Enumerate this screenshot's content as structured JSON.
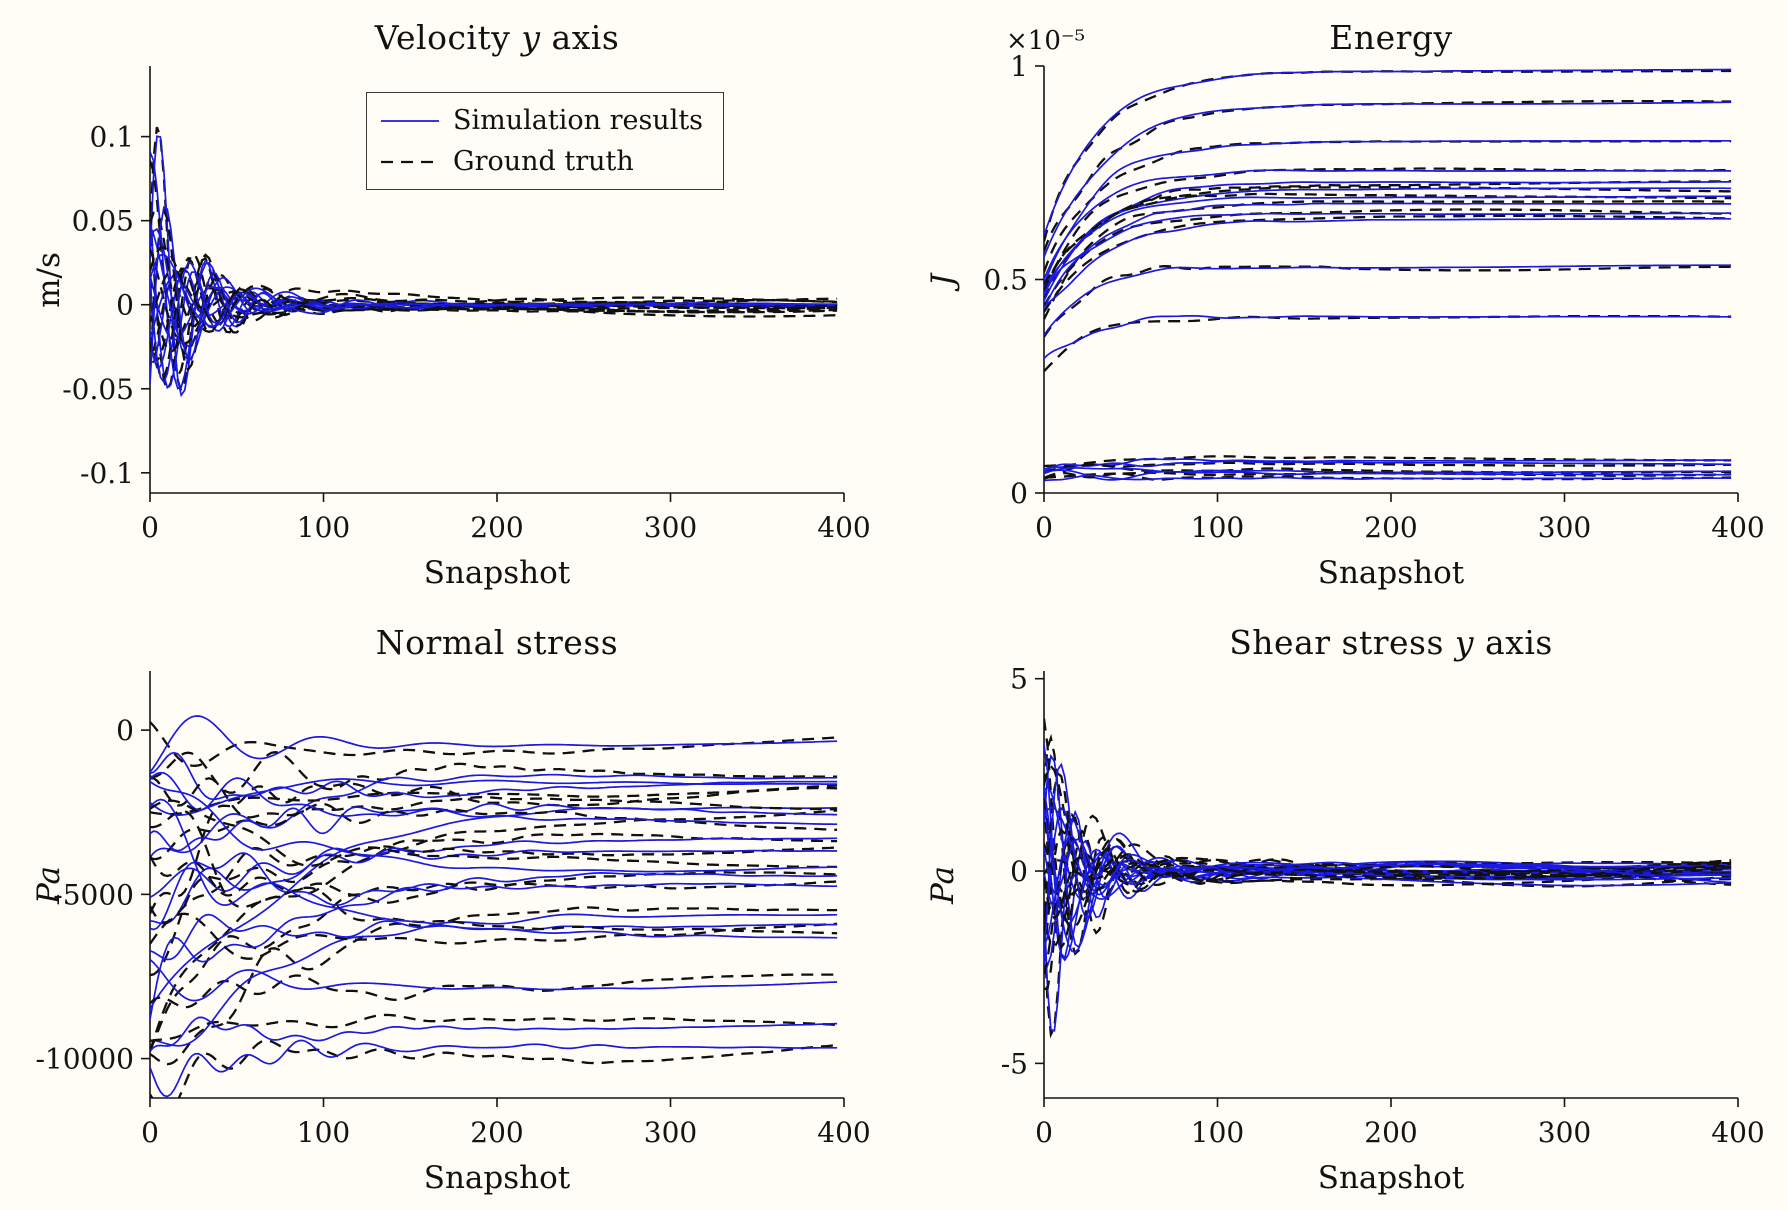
{
  "figure": {
    "background": "#fffdf6"
  },
  "colors": {
    "simulation": "#1a1ae0",
    "ground_truth": "#101010",
    "axis": "#141414"
  },
  "legend": {
    "items": [
      {
        "label": "Simulation results",
        "style": "solid"
      },
      {
        "label": "Ground truth",
        "style": "dashed"
      }
    ]
  },
  "chart_data": [
    {
      "id": "velocity_y",
      "type": "line",
      "model": "damped",
      "title": "Velocity y axis",
      "title_segments": [
        {
          "t": "Velocity "
        },
        {
          "t": "y",
          "i": true
        },
        {
          "t": " axis"
        }
      ],
      "xlabel": "Snapshot",
      "ylabel": "m/s",
      "ylabel_segments": [
        {
          "t": "m/s"
        }
      ],
      "xlim": [
        0,
        400
      ],
      "ylim": [
        -0.112,
        0.142
      ],
      "xticks": [
        0,
        100,
        200,
        300,
        400
      ],
      "xtick_labels": [
        "0",
        "100",
        "200",
        "300",
        "400"
      ],
      "yticks": [
        -0.1,
        -0.05,
        0,
        0.05,
        0.1
      ],
      "ytick_labels": [
        "-0.1",
        "-0.05",
        "0",
        "0.05",
        "0.1"
      ],
      "noise_amp": 0.008,
      "tail": 0.0012,
      "pair_offset": 0.005,
      "has_legend": true,
      "series": [
        {
          "amp": 0.135,
          "period": 27,
          "phase": 0.2,
          "decay": 20,
          "seed": 11
        },
        {
          "amp": 0.095,
          "period": 33,
          "phase": 1.3,
          "decay": 26,
          "seed": 12
        },
        {
          "amp": 0.075,
          "period": 29,
          "phase": 2.2,
          "decay": 24,
          "seed": 13
        },
        {
          "amp": 0.06,
          "period": 38,
          "phase": 0.8,
          "decay": 30,
          "seed": 14
        },
        {
          "amp": 0.05,
          "period": 31,
          "phase": 3.6,
          "decay": 27,
          "seed": 15
        },
        {
          "amp": 0.04,
          "period": 48,
          "phase": 1.8,
          "decay": 36,
          "seed": 16
        },
        {
          "amp": 0.035,
          "period": 26,
          "phase": 4.3,
          "decay": 24,
          "seed": 17
        },
        {
          "amp": 0.03,
          "period": 44,
          "phase": 2.6,
          "decay": 34,
          "seed": 18
        },
        {
          "amp": 0.022,
          "period": 36,
          "phase": 5.2,
          "decay": 30,
          "seed": 19
        },
        {
          "amp": 0.065,
          "period": 30,
          "phase": 2.9,
          "decay": 23,
          "seed": 20
        },
        {
          "amp": 0.085,
          "period": 28,
          "phase": 5.7,
          "decay": 25,
          "seed": 21
        },
        {
          "amp": 0.045,
          "period": 54,
          "phase": 0.4,
          "decay": 40,
          "seed": 22
        }
      ]
    },
    {
      "id": "energy",
      "type": "line",
      "model": "rise",
      "title": "Energy",
      "title_segments": [
        {
          "t": "Energy"
        }
      ],
      "xlabel": "Snapshot",
      "ylabel": "J",
      "ylabel_segments": [
        {
          "t": "J",
          "i": true
        }
      ],
      "multiplier": "×10⁻⁵",
      "xlim": [
        0,
        400
      ],
      "ylim": [
        0,
        1
      ],
      "xticks": [
        0,
        100,
        200,
        300,
        400
      ],
      "xtick_labels": [
        "0",
        "100",
        "200",
        "300",
        "400"
      ],
      "yticks": [
        0,
        0.5,
        1
      ],
      "ytick_labels": [
        "0",
        "0.5",
        "1"
      ],
      "noise_amp": 0.022,
      "tail": 0.004,
      "pair_offset": 0.007,
      "has_legend": false,
      "series": [
        {
          "start": 0.6,
          "plateau": 0.99,
          "tau": 32,
          "seed": 61
        },
        {
          "start": 0.55,
          "plateau": 0.915,
          "tau": 36,
          "seed": 62
        },
        {
          "start": 0.5,
          "plateau": 0.825,
          "tau": 30,
          "seed": 63
        },
        {
          "start": 0.49,
          "plateau": 0.755,
          "tau": 28,
          "seed": 64
        },
        {
          "start": 0.475,
          "plateau": 0.73,
          "tau": 32,
          "seed": 65
        },
        {
          "start": 0.465,
          "plateau": 0.71,
          "tau": 30,
          "seed": 66
        },
        {
          "start": 0.455,
          "plateau": 0.695,
          "tau": 26,
          "seed": 67
        },
        {
          "start": 0.445,
          "plateau": 0.68,
          "tau": 30,
          "seed": 68
        },
        {
          "start": 0.435,
          "plateau": 0.655,
          "tau": 28,
          "seed": 69
        },
        {
          "start": 0.425,
          "plateau": 0.64,
          "tau": 33,
          "seed": 70
        },
        {
          "start": 0.37,
          "plateau": 0.53,
          "tau": 26,
          "seed": 71
        },
        {
          "start": 0.3,
          "plateau": 0.41,
          "tau": 24,
          "seed": 72
        },
        {
          "start": 0.055,
          "plateau": 0.078,
          "tau": 20,
          "seed": 73
        },
        {
          "start": 0.05,
          "plateau": 0.068,
          "tau": 22,
          "seed": 74
        },
        {
          "start": 0.042,
          "plateau": 0.052,
          "tau": 20,
          "seed": 75
        },
        {
          "start": 0.036,
          "plateau": 0.044,
          "tau": 20,
          "seed": 76
        },
        {
          "start": 0.03,
          "plateau": 0.037,
          "tau": 20,
          "seed": 77
        }
      ]
    },
    {
      "id": "normal_stress",
      "type": "line",
      "model": "settle",
      "title": "Normal stress",
      "title_segments": [
        {
          "t": "Normal stress"
        }
      ],
      "xlabel": "Snapshot",
      "ylabel": "Pa",
      "ylabel_segments": [
        {
          "t": "Pa",
          "i": true
        }
      ],
      "xlim": [
        0,
        400
      ],
      "ylim": [
        -11200,
        1800
      ],
      "xticks": [
        0,
        100,
        200,
        300,
        400
      ],
      "xtick_labels": [
        "0",
        "100",
        "200",
        "300",
        "400"
      ],
      "yticks": [
        0,
        -5000,
        -10000
      ],
      "ytick_labels": [
        "0",
        "-5000",
        "-10000"
      ],
      "noise_amp": 1350,
      "tail": 260,
      "pair_offset": 380,
      "has_legend": false,
      "series": [
        {
          "start": -300,
          "plateau": -420,
          "tau": 55,
          "seed": 41
        },
        {
          "start": -4800,
          "plateau": -1300,
          "tau": 70,
          "seed": 42
        },
        {
          "start": -2500,
          "plateau": -1600,
          "tau": 60,
          "seed": 43
        },
        {
          "start": -700,
          "plateau": -1850,
          "tau": 65,
          "seed": 44
        },
        {
          "start": -9000,
          "plateau": -2150,
          "tau": 85,
          "seed": 45
        },
        {
          "start": -3500,
          "plateau": -2450,
          "tau": 60,
          "seed": 46
        },
        {
          "start": -1500,
          "plateau": -2800,
          "tau": 55,
          "seed": 47
        },
        {
          "start": -6000,
          "plateau": -3300,
          "tau": 72,
          "seed": 48
        },
        {
          "start": -5200,
          "plateau": -3700,
          "tau": 66,
          "seed": 49
        },
        {
          "start": -2000,
          "plateau": -4100,
          "tau": 62,
          "seed": 50
        },
        {
          "start": -8200,
          "plateau": -4400,
          "tau": 78,
          "seed": 51
        },
        {
          "start": -4200,
          "plateau": -4750,
          "tau": 60,
          "seed": 52
        },
        {
          "start": -10400,
          "plateau": -5300,
          "tau": 82,
          "seed": 53
        },
        {
          "start": -6800,
          "plateau": -5950,
          "tau": 70,
          "seed": 54
        },
        {
          "start": -3000,
          "plateau": -6350,
          "tau": 88,
          "seed": 55
        },
        {
          "start": -7800,
          "plateau": -7600,
          "tau": 60,
          "seed": 56
        },
        {
          "start": -9900,
          "plateau": -8700,
          "tau": 76,
          "seed": 57
        },
        {
          "start": -10600,
          "plateau": -9600,
          "tau": 72,
          "seed": 58
        }
      ]
    },
    {
      "id": "shear_y",
      "type": "line",
      "model": "damped",
      "title": "Shear stress y axis",
      "title_segments": [
        {
          "t": "Shear stress "
        },
        {
          "t": "y",
          "i": true
        },
        {
          "t": " axis"
        }
      ],
      "xlabel": "Snapshot",
      "ylabel": "Pa",
      "ylabel_segments": [
        {
          "t": "Pa",
          "i": true
        }
      ],
      "xlim": [
        0,
        400
      ],
      "ylim": [
        -5.9,
        5.2
      ],
      "xticks": [
        0,
        100,
        200,
        300,
        400
      ],
      "xtick_labels": [
        "0",
        "100",
        "200",
        "300",
        "400"
      ],
      "yticks": [
        -5,
        0,
        5
      ],
      "ytick_labels": [
        "-5",
        "0",
        "5"
      ],
      "noise_amp": 0.9,
      "tail": 0.28,
      "pair_offset": 0.22,
      "has_legend": false,
      "series": [
        {
          "amp": 5.4,
          "period": 26,
          "phase": 3.3,
          "decay": 18,
          "seed": 81
        },
        {
          "amp": 4.5,
          "period": 30,
          "phase": 0.4,
          "decay": 20,
          "seed": 82
        },
        {
          "amp": 3.8,
          "period": 24,
          "phase": 1.5,
          "decay": 18,
          "seed": 83
        },
        {
          "amp": 3.2,
          "period": 34,
          "phase": 2.4,
          "decay": 22,
          "seed": 84
        },
        {
          "amp": 2.8,
          "period": 28,
          "phase": 4.1,
          "decay": 20,
          "seed": 85
        },
        {
          "amp": 2.4,
          "period": 40,
          "phase": 0.9,
          "decay": 26,
          "seed": 86
        },
        {
          "amp": 2.0,
          "period": 25,
          "phase": 5.0,
          "decay": 18,
          "seed": 87
        },
        {
          "amp": 1.8,
          "period": 36,
          "phase": 1.9,
          "decay": 24,
          "seed": 88
        },
        {
          "amp": 1.5,
          "period": 30,
          "phase": 3.0,
          "decay": 20,
          "seed": 89
        },
        {
          "amp": 2.6,
          "period": 46,
          "phase": 2.0,
          "decay": 30,
          "seed": 90
        },
        {
          "amp": 3.5,
          "period": 29,
          "phase": 5.6,
          "decay": 19,
          "seed": 91
        },
        {
          "amp": 1.2,
          "period": 50,
          "phase": 0.6,
          "decay": 32,
          "seed": 92
        },
        {
          "amp": 2.2,
          "period": 33,
          "phase": 4.6,
          "decay": 22,
          "seed": 93
        },
        {
          "amp": 1.6,
          "period": 27,
          "phase": 2.7,
          "decay": 18,
          "seed": 94
        }
      ]
    }
  ]
}
